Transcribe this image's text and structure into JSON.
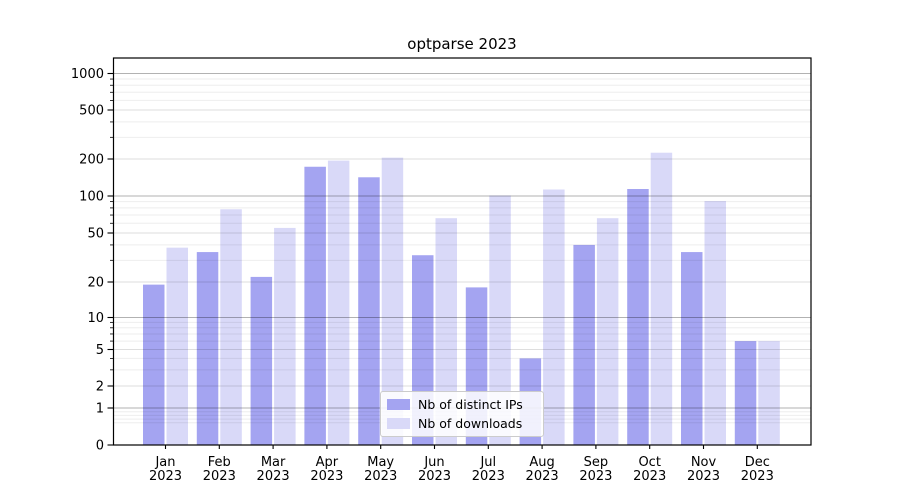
{
  "chart_data": {
    "type": "bar",
    "title": "optparse 2023",
    "categories": [
      "Jan",
      "Feb",
      "Mar",
      "Apr",
      "May",
      "Jun",
      "Jul",
      "Aug",
      "Sep",
      "Oct",
      "Nov",
      "Dec"
    ],
    "year_label": "2023",
    "series": [
      {
        "name": "Nb of distinct IPs",
        "color": "#a4a4f1",
        "values": [
          19,
          35,
          22,
          173,
          142,
          33,
          18,
          4,
          40,
          114,
          35,
          6
        ]
      },
      {
        "name": "Nb of downloads",
        "color": "#d9d9f8",
        "values": [
          38,
          78,
          55,
          194,
          205,
          66,
          101,
          113,
          66,
          225,
          91,
          6
        ]
      }
    ],
    "xlabel": "",
    "ylabel": "",
    "y_ticks": [
      0,
      1,
      2,
      5,
      10,
      20,
      50,
      100,
      200,
      500,
      1000
    ],
    "y_scale": "symlog",
    "ylim": [
      0,
      1340
    ],
    "grid": true,
    "legend_position": "lower center"
  }
}
